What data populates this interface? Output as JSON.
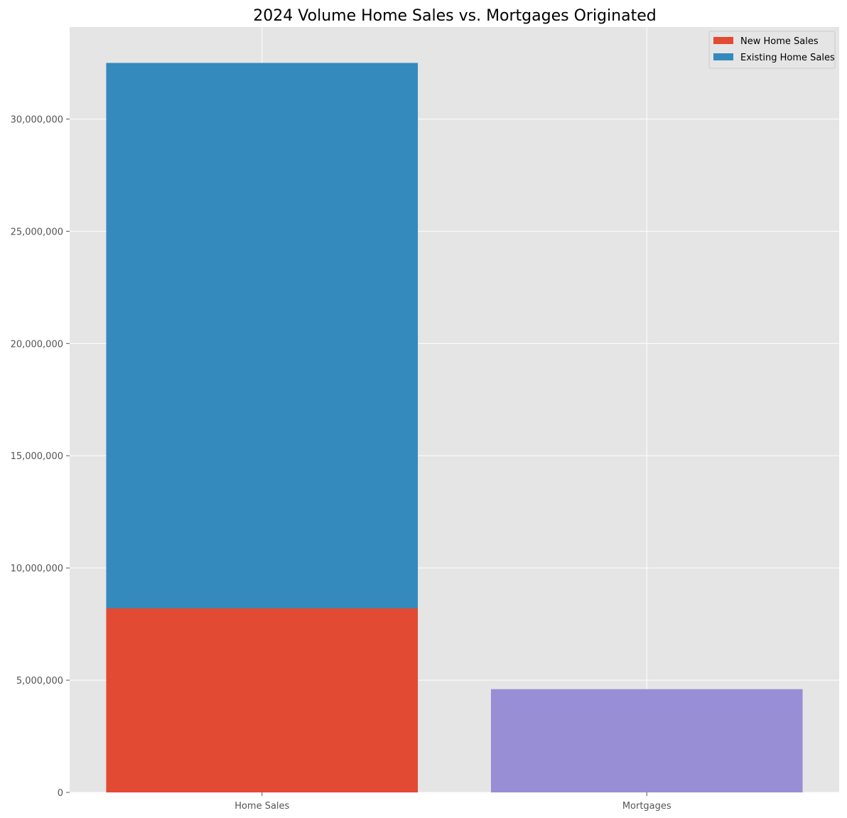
{
  "chart_data": {
    "type": "bar",
    "stacked": true,
    "title": "2024 Volume Home Sales vs. Mortgages Originated",
    "xlabel": "",
    "ylabel": "",
    "categories": [
      "Home Sales",
      "Mortgages"
    ],
    "ylim": [
      0,
      34100000
    ],
    "yticks": [
      0,
      5000000,
      10000000,
      15000000,
      20000000,
      25000000,
      30000000
    ],
    "ytick_labels": [
      "0",
      "5,000,000",
      "10,000,000",
      "15,000,000",
      "20,000,000",
      "25,000,000",
      "30,000,000"
    ],
    "grid": true,
    "legend_position": "top-right",
    "series": [
      {
        "name": "New Home Sales",
        "color": "#E24A33",
        "values": [
          8200000,
          null
        ]
      },
      {
        "name": "Existing Home Sales",
        "color": "#348ABD",
        "values": [
          24300000,
          null
        ]
      },
      {
        "color": "#988ED5",
        "values": [
          null,
          4600000
        ]
      }
    ]
  }
}
